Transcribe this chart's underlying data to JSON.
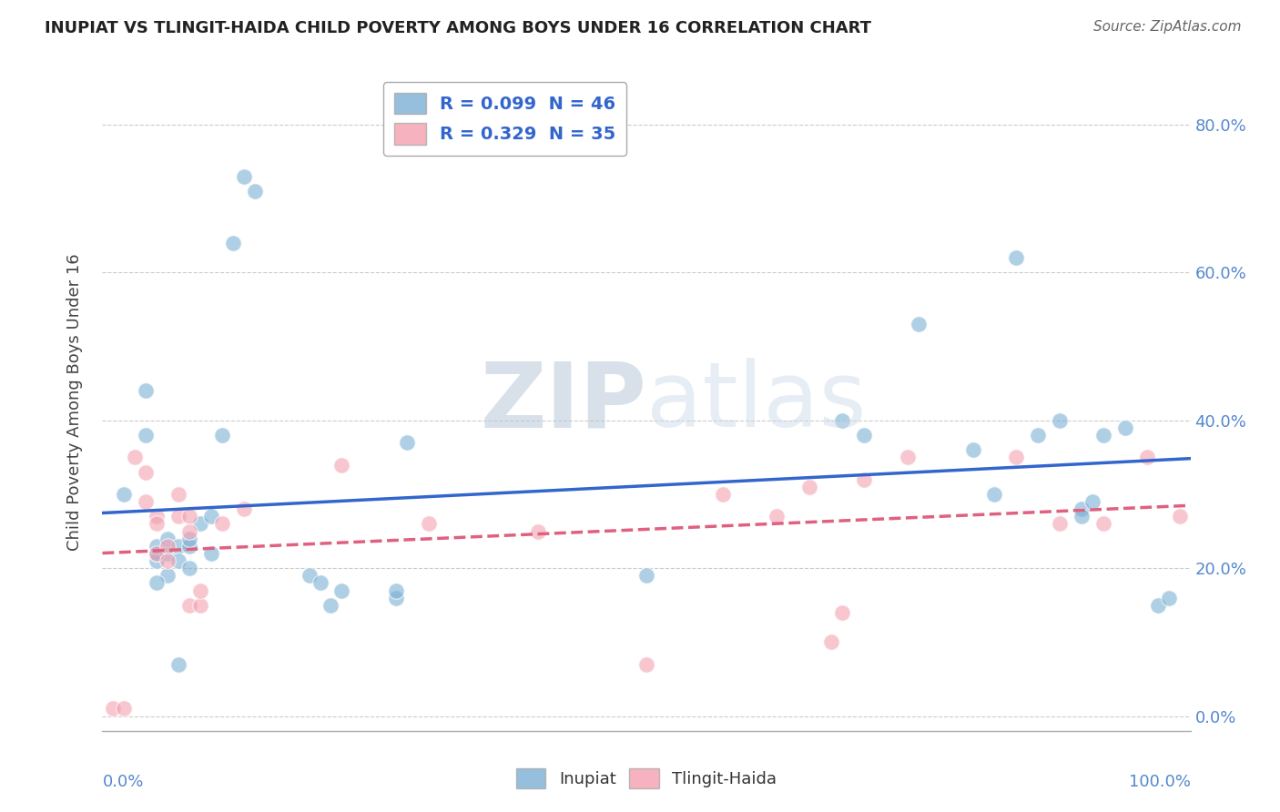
{
  "title": "INUPIAT VS TLINGIT-HAIDA CHILD POVERTY AMONG BOYS UNDER 16 CORRELATION CHART",
  "source": "Source: ZipAtlas.com",
  "ylabel": "Child Poverty Among Boys Under 16",
  "legend_inupiat": "R = 0.099  N = 46",
  "legend_tlingit": "R = 0.329  N = 35",
  "inupiat_color": "#7bafd4",
  "tlingit_color": "#f4a0b0",
  "trend_inupiat_color": "#3366cc",
  "trend_tlingit_color": "#e06080",
  "watermark_zip": "ZIP",
  "watermark_atlas": "atlas",
  "inupiat_x": [
    0.02,
    0.04,
    0.05,
    0.05,
    0.05,
    0.06,
    0.06,
    0.06,
    0.07,
    0.07,
    0.07,
    0.08,
    0.08,
    0.08,
    0.09,
    0.1,
    0.1,
    0.11,
    0.12,
    0.13,
    0.14,
    0.19,
    0.2,
    0.21,
    0.22,
    0.27,
    0.27,
    0.28,
    0.5,
    0.68,
    0.7,
    0.75,
    0.8,
    0.82,
    0.84,
    0.86,
    0.88,
    0.9,
    0.9,
    0.91,
    0.92,
    0.94,
    0.97,
    0.98,
    0.04,
    0.05
  ],
  "inupiat_y": [
    0.3,
    0.44,
    0.21,
    0.22,
    0.23,
    0.22,
    0.19,
    0.24,
    0.23,
    0.21,
    0.07,
    0.2,
    0.23,
    0.24,
    0.26,
    0.27,
    0.22,
    0.38,
    0.64,
    0.73,
    0.71,
    0.19,
    0.18,
    0.15,
    0.17,
    0.16,
    0.17,
    0.37,
    0.19,
    0.4,
    0.38,
    0.53,
    0.36,
    0.3,
    0.62,
    0.38,
    0.4,
    0.28,
    0.27,
    0.29,
    0.38,
    0.39,
    0.15,
    0.16,
    0.38,
    0.18
  ],
  "tlingit_x": [
    0.01,
    0.02,
    0.03,
    0.04,
    0.04,
    0.05,
    0.05,
    0.05,
    0.06,
    0.06,
    0.07,
    0.07,
    0.08,
    0.08,
    0.08,
    0.09,
    0.09,
    0.11,
    0.13,
    0.22,
    0.3,
    0.4,
    0.5,
    0.57,
    0.62,
    0.65,
    0.67,
    0.68,
    0.7,
    0.74,
    0.84,
    0.88,
    0.92,
    0.96,
    0.99
  ],
  "tlingit_y": [
    0.01,
    0.01,
    0.35,
    0.33,
    0.29,
    0.22,
    0.27,
    0.26,
    0.23,
    0.21,
    0.3,
    0.27,
    0.27,
    0.25,
    0.15,
    0.15,
    0.17,
    0.26,
    0.28,
    0.34,
    0.26,
    0.25,
    0.07,
    0.3,
    0.27,
    0.31,
    0.1,
    0.14,
    0.32,
    0.35,
    0.35,
    0.26,
    0.26,
    0.35,
    0.27
  ],
  "xlim": [
    0.0,
    1.0
  ],
  "ylim": [
    -0.02,
    0.87
  ],
  "yticks": [
    0.0,
    0.2,
    0.4,
    0.6,
    0.8
  ],
  "ytick_labels": [
    "0.0%",
    "20.0%",
    "40.0%",
    "60.0%",
    "80.0%"
  ]
}
